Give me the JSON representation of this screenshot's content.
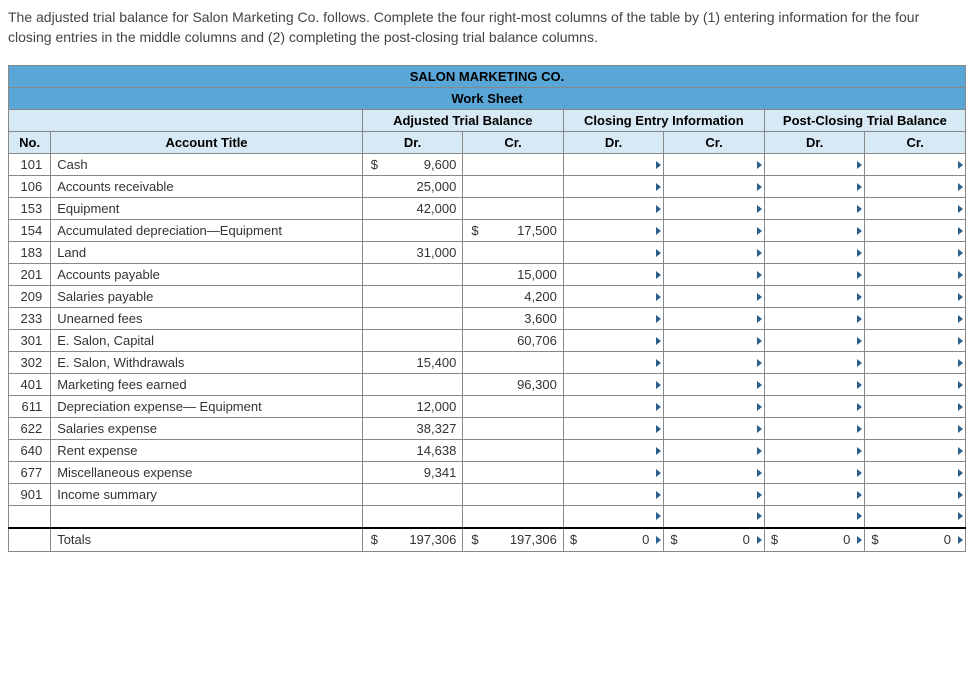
{
  "instructions": "The adjusted trial balance for Salon Marketing Co. follows. Complete the four right-most columns of the table by (1) entering information for the four closing entries in the middle columns and (2) completing the post-closing trial balance columns.",
  "company": "SALON MARKETING CO.",
  "subtitle": "Work Sheet",
  "section_headers": {
    "adjusted": "Adjusted Trial Balance",
    "closing": "Closing Entry Information",
    "post": "Post-Closing Trial Balance"
  },
  "col_headers": {
    "no": "No.",
    "title": "Account Title",
    "dr": "Dr.",
    "cr": "Cr."
  },
  "rows": [
    {
      "no": "101",
      "title": "Cash",
      "adj_dr": "9,600",
      "adj_dr_cur": "$",
      "adj_cr": ""
    },
    {
      "no": "106",
      "title": "Accounts receivable",
      "adj_dr": "25,000",
      "adj_cr": ""
    },
    {
      "no": "153",
      "title": "Equipment",
      "adj_dr": "42,000",
      "adj_cr": ""
    },
    {
      "no": "154",
      "title": "Accumulated depreciation—Equipment",
      "adj_dr": "",
      "adj_cr": "17,500",
      "adj_cr_cur": "$"
    },
    {
      "no": "183",
      "title": "Land",
      "adj_dr": "31,000",
      "adj_cr": ""
    },
    {
      "no": "201",
      "title": "Accounts payable",
      "adj_dr": "",
      "adj_cr": "15,000"
    },
    {
      "no": "209",
      "title": "Salaries payable",
      "adj_dr": "",
      "adj_cr": "4,200"
    },
    {
      "no": "233",
      "title": "Unearned fees",
      "adj_dr": "",
      "adj_cr": "3,600"
    },
    {
      "no": "301",
      "title": "E. Salon, Capital",
      "adj_dr": "",
      "adj_cr": "60,706"
    },
    {
      "no": "302",
      "title": "E. Salon, Withdrawals",
      "adj_dr": "15,400",
      "adj_cr": ""
    },
    {
      "no": "401",
      "title": "Marketing fees earned",
      "adj_dr": "",
      "adj_cr": "96,300"
    },
    {
      "no": "611",
      "title": "Depreciation expense— Equipment",
      "adj_dr": "12,000",
      "adj_cr": ""
    },
    {
      "no": "622",
      "title": "Salaries expense",
      "adj_dr": "38,327",
      "adj_cr": ""
    },
    {
      "no": "640",
      "title": "Rent expense",
      "adj_dr": "14,638",
      "adj_cr": ""
    },
    {
      "no": "677",
      "title": "Miscellaneous expense",
      "adj_dr": "9,341",
      "adj_cr": ""
    },
    {
      "no": "901",
      "title": "Income summary",
      "adj_dr": "",
      "adj_cr": ""
    }
  ],
  "blank_row": true,
  "totals": {
    "label": "Totals",
    "adj_dr": "197,306",
    "adj_cr": "197,306",
    "close_dr": "0",
    "close_cr": "0",
    "post_dr": "0",
    "post_cr": "0",
    "cur": "$"
  }
}
